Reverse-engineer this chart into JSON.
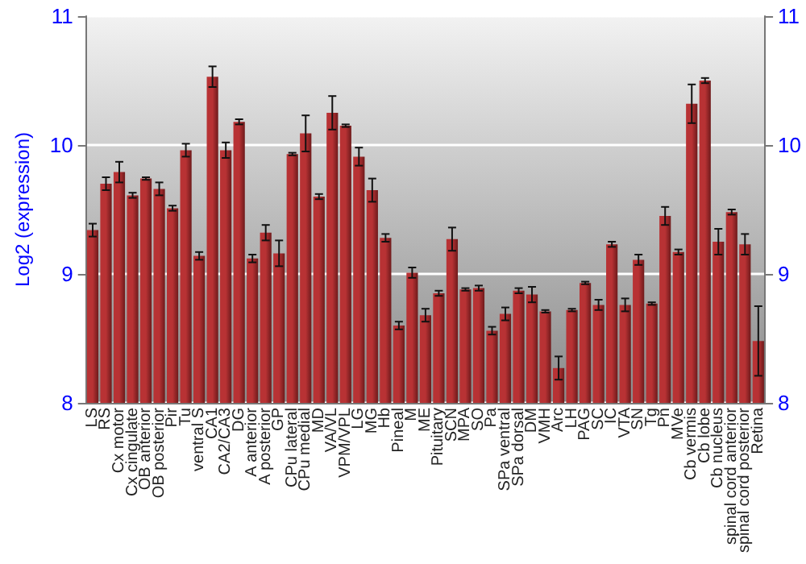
{
  "chart_data": {
    "type": "bar",
    "ylabel": "Log2 (expression)",
    "categories": [
      "LS",
      "RS",
      "Cx motor",
      "Cx cingulate",
      "OB anterior",
      "OB posterior",
      "Pir",
      "Tu",
      "ventral S",
      "CA1",
      "CA2/CA3",
      "DG",
      "A anterior",
      "A posterior",
      "GP",
      "CPu lateral",
      "CPu medial",
      "MD",
      "VA/VL",
      "VPM/VPL",
      "LG",
      "MG",
      "Hb",
      "Pineal",
      "M",
      "ME",
      "Pituitary",
      "SCN",
      "MPA",
      "SO",
      "Pa",
      "SPa ventral",
      "SPa dorsal",
      "DM",
      "VMH",
      "Arc",
      "LH",
      "PAG",
      "SC",
      "IC",
      "VTA",
      "SN",
      "Tg",
      "Pn",
      "MVe",
      "Cb vermis",
      "Cb lobe",
      "Cb nucleus",
      "spinal cord anterior",
      "spinal cord posterior",
      "Retina"
    ],
    "values": [
      9.34,
      9.7,
      9.79,
      9.61,
      9.74,
      9.66,
      9.51,
      9.96,
      9.14,
      10.53,
      9.96,
      10.18,
      9.12,
      9.32,
      9.16,
      9.93,
      10.09,
      9.6,
      10.25,
      10.15,
      9.91,
      9.65,
      9.28,
      8.6,
      9.01,
      8.68,
      8.85,
      9.27,
      8.88,
      8.89,
      8.56,
      8.69,
      8.87,
      8.84,
      8.71,
      8.27,
      8.72,
      8.93,
      8.76,
      9.23,
      8.76,
      9.11,
      8.77,
      9.45,
      9.17,
      10.32,
      10.5,
      9.25,
      9.48,
      9.23,
      8.48
    ],
    "errors": [
      0.05,
      0.05,
      0.08,
      0.02,
      0.01,
      0.05,
      0.02,
      0.05,
      0.03,
      0.08,
      0.06,
      0.02,
      0.03,
      0.06,
      0.1,
      0.01,
      0.14,
      0.02,
      0.13,
      0.01,
      0.07,
      0.09,
      0.03,
      0.03,
      0.04,
      0.05,
      0.02,
      0.09,
      0.01,
      0.02,
      0.03,
      0.05,
      0.02,
      0.06,
      0.01,
      0.09,
      0.01,
      0.01,
      0.04,
      0.02,
      0.05,
      0.04,
      0.01,
      0.07,
      0.02,
      0.15,
      0.02,
      0.1,
      0.02,
      0.08,
      0.27
    ],
    "color": "#b83234",
    "ylim": [
      8,
      11
    ],
    "yticks": [
      8,
      9,
      10,
      11
    ],
    "y2lim": [
      8,
      11
    ],
    "y2ticks": [
      8,
      9,
      10,
      11
    ],
    "grid": "y"
  }
}
